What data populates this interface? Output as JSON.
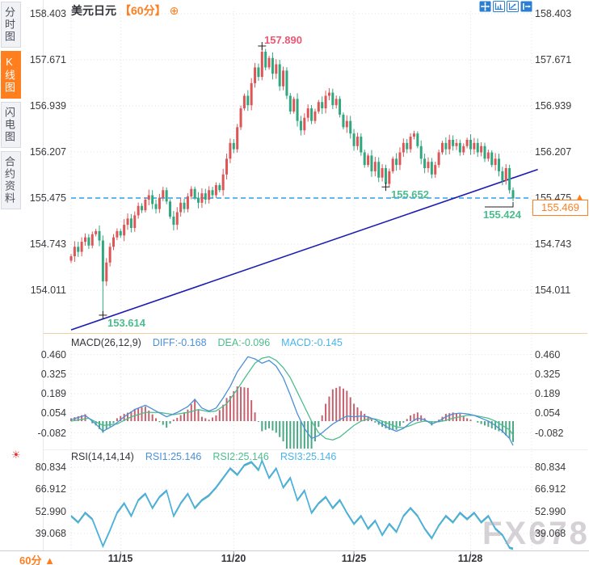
{
  "sidebar": {
    "tabs": [
      {
        "label": "分时图",
        "active": false
      },
      {
        "label": "K线图",
        "active": true
      },
      {
        "label": "闪电图",
        "active": false
      },
      {
        "label": "合约资料",
        "active": false
      }
    ]
  },
  "header": {
    "symbol": "美元日元",
    "period": "【60分】",
    "icons": [
      "circle-plus-icon",
      "pan-icon",
      "axis-scale-icon",
      "chart-pointer-icon",
      "exit-icon"
    ]
  },
  "icons": {
    "circle_plus": "⊕",
    "up_arrow": "▲",
    "sun": "☀"
  },
  "axes": {
    "price": [
      "158.403",
      "157.671",
      "156.939",
      "156.207",
      "155.475",
      "154.743",
      "154.011"
    ],
    "macd": [
      "0.460",
      "0.325",
      "0.189",
      "0.054",
      "-0.082"
    ],
    "rsi": [
      "80.834",
      "66.912",
      "52.990",
      "39.068"
    ]
  },
  "annotations": {
    "high": "157.890",
    "low_main": "153.614",
    "low_mid": "155.652",
    "low_last": "155.424",
    "current": "155.469",
    "dashed_level": "155.475"
  },
  "macd": {
    "title": "MACD(26,12,9)",
    "diff": "DIFF:-0.168",
    "dea": "DEA:-0.096",
    "macd": "MACD:-0.145"
  },
  "rsi": {
    "title": "RSI(14,14,14)",
    "r1": "RSI1:25.146",
    "r2": "RSI2:25.146",
    "r3": "RSI3:25.146"
  },
  "timebar": {
    "period": "60分",
    "dates": [
      "11/15",
      "11/20",
      "11/25",
      "11/28"
    ]
  },
  "watermark": {
    "text": "FX678"
  },
  "colors": {
    "accent_orange": "#ff7e1e",
    "candle_up_red": "#dc5658",
    "candle_down_green": "#30a77e",
    "label_red": "#ed5672",
    "label_green": "#4bbd8d",
    "diff_blue": "#4a90d9",
    "dea_green": "#4dbd8e",
    "rsi3_cyan": "#49b4e8",
    "hist_red": "#c5616e",
    "hist_green": "#4aa884",
    "trend_navy": "#1c1cb4",
    "dashed_blue": "#2f9fe8",
    "grid": "#e1e1e6",
    "toolbar_blue": "#2a7fd4",
    "marker_black": "#222222"
  },
  "chart_data": {
    "type": "candlestick+macd+rsi",
    "title": "美元日元 60分 K线图",
    "price_axis_range": {
      "top": 158.403,
      "bottom": 154.011
    },
    "dashed_level": 155.475,
    "current_price": 155.469,
    "date_tick_indices": [
      14,
      46,
      80,
      113
    ],
    "date_tick_labels": [
      "11/15",
      "11/20",
      "11/25",
      "11/28"
    ],
    "trend_line": {
      "start_index": 0,
      "start_price": 153.38,
      "end_index": 132,
      "end_price": 155.93
    },
    "price": {
      "close": [
        154.55,
        154.7,
        154.62,
        154.78,
        154.85,
        154.72,
        154.9,
        154.95,
        154.8,
        154.15,
        154.45,
        154.7,
        154.85,
        154.95,
        154.88,
        155.05,
        155.15,
        155.0,
        155.2,
        155.35,
        155.28,
        155.45,
        155.52,
        155.38,
        155.3,
        155.48,
        155.6,
        155.42,
        155.18,
        155.05,
        155.25,
        155.4,
        155.3,
        155.5,
        155.62,
        155.48,
        155.4,
        155.55,
        155.45,
        155.6,
        155.52,
        155.68,
        155.6,
        155.85,
        156.1,
        156.35,
        156.25,
        156.6,
        156.9,
        157.1,
        156.95,
        157.3,
        157.55,
        157.4,
        157.8,
        157.55,
        157.7,
        157.45,
        157.6,
        157.25,
        157.5,
        157.1,
        156.85,
        157.05,
        156.7,
        156.55,
        156.75,
        156.9,
        156.7,
        156.85,
        157.0,
        156.9,
        157.1,
        157.15,
        156.95,
        157.05,
        156.8,
        156.6,
        156.7,
        156.5,
        156.3,
        156.45,
        156.2,
        156.0,
        156.15,
        155.9,
        156.05,
        155.8,
        155.95,
        155.7,
        155.9,
        156.1,
        156.0,
        156.2,
        156.35,
        156.25,
        156.45,
        156.5,
        156.3,
        156.1,
        155.95,
        156.05,
        155.85,
        156.0,
        156.2,
        156.35,
        156.25,
        156.4,
        156.3,
        156.35,
        156.2,
        156.3,
        156.4,
        156.25,
        156.35,
        156.2,
        156.3,
        156.1,
        156.2,
        156.0,
        156.1,
        155.9,
        155.75,
        155.95,
        155.6,
        155.47
      ],
      "first_open": 154.48,
      "extremes": {
        "9": {
          "low": 153.614,
          "marker": "cross"
        },
        "54": {
          "high": 157.89,
          "marker": "cross"
        },
        "89": {
          "low": 155.652,
          "marker": "cross"
        },
        "125": {
          "low": 155.424,
          "marker": "leader"
        }
      }
    },
    "macd": {
      "axis_values": [
        0.46,
        0.325,
        0.189,
        0.054,
        -0.082
      ],
      "hist_rule": "hist = 2*(diff-dea)",
      "diff_anchors": [
        [
          0,
          0.01
        ],
        [
          4,
          0.04
        ],
        [
          7,
          -0.02
        ],
        [
          9,
          -0.07
        ],
        [
          12,
          -0.03
        ],
        [
          15,
          0.03
        ],
        [
          18,
          0.08
        ],
        [
          21,
          0.11
        ],
        [
          24,
          0.07
        ],
        [
          27,
          0.03
        ],
        [
          30,
          0.06
        ],
        [
          33,
          0.1
        ],
        [
          35,
          0.15
        ],
        [
          37,
          0.09
        ],
        [
          39,
          0.07
        ],
        [
          41,
          0.09
        ],
        [
          43,
          0.16
        ],
        [
          45,
          0.24
        ],
        [
          47,
          0.34
        ],
        [
          50,
          0.445
        ],
        [
          52,
          0.43
        ],
        [
          54,
          0.4
        ],
        [
          56,
          0.42
        ],
        [
          58,
          0.38
        ],
        [
          60,
          0.3
        ],
        [
          62,
          0.18
        ],
        [
          64,
          0.05
        ],
        [
          66,
          -0.05
        ],
        [
          68,
          -0.12
        ],
        [
          70,
          -0.1
        ],
        [
          72,
          -0.06
        ],
        [
          74,
          -0.02
        ],
        [
          76,
          0.01
        ],
        [
          78,
          0.035
        ],
        [
          80,
          0.03
        ],
        [
          82,
          0.035
        ],
        [
          84,
          0.03
        ],
        [
          86,
          0.01
        ],
        [
          88,
          -0.02
        ],
        [
          90,
          -0.05
        ],
        [
          92,
          -0.07
        ],
        [
          94,
          -0.05
        ],
        [
          96,
          -0.01
        ],
        [
          98,
          0.02
        ],
        [
          100,
          0.01
        ],
        [
          102,
          -0.02
        ],
        [
          104,
          0.0
        ],
        [
          106,
          0.03
        ],
        [
          108,
          0.05
        ],
        [
          110,
          0.055
        ],
        [
          112,
          0.05
        ],
        [
          114,
          0.04
        ],
        [
          116,
          0.02
        ],
        [
          118,
          0.0
        ],
        [
          120,
          -0.03
        ],
        [
          122,
          -0.07
        ],
        [
          124,
          -0.12
        ],
        [
          125,
          -0.168
        ]
      ],
      "dea_anchors": [
        [
          0,
          0.0
        ],
        [
          5,
          0.02
        ],
        [
          9,
          -0.03
        ],
        [
          13,
          -0.02
        ],
        [
          17,
          0.03
        ],
        [
          21,
          0.06
        ],
        [
          25,
          0.06
        ],
        [
          29,
          0.045
        ],
        [
          33,
          0.06
        ],
        [
          36,
          0.08
        ],
        [
          39,
          0.065
        ],
        [
          41,
          0.07
        ],
        [
          44,
          0.12
        ],
        [
          47,
          0.22
        ],
        [
          50,
          0.33
        ],
        [
          52,
          0.4
        ],
        [
          54,
          0.435
        ],
        [
          56,
          0.445
        ],
        [
          58,
          0.42
        ],
        [
          60,
          0.37
        ],
        [
          62,
          0.3
        ],
        [
          64,
          0.2
        ],
        [
          66,
          0.1
        ],
        [
          68,
          0.0
        ],
        [
          70,
          -0.08
        ],
        [
          72,
          -0.12
        ],
        [
          74,
          -0.13
        ],
        [
          76,
          -0.11
        ],
        [
          78,
          -0.07
        ],
        [
          80,
          -0.03
        ],
        [
          82,
          0.0
        ],
        [
          84,
          0.015
        ],
        [
          86,
          0.015
        ],
        [
          88,
          0.0
        ],
        [
          90,
          -0.02
        ],
        [
          92,
          -0.04
        ],
        [
          94,
          -0.045
        ],
        [
          96,
          -0.03
        ],
        [
          98,
          -0.01
        ],
        [
          100,
          0.0
        ],
        [
          102,
          -0.005
        ],
        [
          104,
          -0.005
        ],
        [
          106,
          0.005
        ],
        [
          108,
          0.02
        ],
        [
          110,
          0.03
        ],
        [
          112,
          0.04
        ],
        [
          114,
          0.04
        ],
        [
          116,
          0.03
        ],
        [
          118,
          0.02
        ],
        [
          120,
          0.0
        ],
        [
          122,
          -0.03
        ],
        [
          124,
          -0.06
        ],
        [
          125,
          -0.096
        ]
      ],
      "last_values": {
        "diff": -0.168,
        "dea": -0.096,
        "macd": -0.145
      }
    },
    "rsi": {
      "axis_values": [
        80.834,
        66.912,
        52.99,
        39.068
      ],
      "anchors": [
        [
          0,
          50
        ],
        [
          2,
          46
        ],
        [
          4,
          52
        ],
        [
          6,
          48
        ],
        [
          9,
          31
        ],
        [
          11,
          41
        ],
        [
          13,
          52
        ],
        [
          15,
          58
        ],
        [
          17,
          50
        ],
        [
          19,
          60
        ],
        [
          21,
          64
        ],
        [
          23,
          55
        ],
        [
          25,
          62
        ],
        [
          27,
          66
        ],
        [
          29,
          50
        ],
        [
          31,
          58
        ],
        [
          33,
          64
        ],
        [
          35,
          55
        ],
        [
          37,
          60
        ],
        [
          39,
          63
        ],
        [
          41,
          68
        ],
        [
          43,
          74
        ],
        [
          45,
          80
        ],
        [
          47,
          76
        ],
        [
          49,
          82
        ],
        [
          51,
          84
        ],
        [
          53,
          79
        ],
        [
          54,
          85
        ],
        [
          56,
          74
        ],
        [
          58,
          80
        ],
        [
          60,
          68
        ],
        [
          62,
          74
        ],
        [
          64,
          60
        ],
        [
          66,
          66
        ],
        [
          68,
          52
        ],
        [
          70,
          58
        ],
        [
          72,
          62
        ],
        [
          74,
          55
        ],
        [
          76,
          60
        ],
        [
          78,
          52
        ],
        [
          80,
          45
        ],
        [
          82,
          50
        ],
        [
          84,
          42
        ],
        [
          86,
          47
        ],
        [
          88,
          38
        ],
        [
          90,
          45
        ],
        [
          92,
          40
        ],
        [
          94,
          50
        ],
        [
          96,
          55
        ],
        [
          98,
          50
        ],
        [
          100,
          42
        ],
        [
          102,
          36
        ],
        [
          104,
          44
        ],
        [
          106,
          50
        ],
        [
          108,
          46
        ],
        [
          110,
          52
        ],
        [
          112,
          48
        ],
        [
          114,
          52
        ],
        [
          116,
          46
        ],
        [
          118,
          50
        ],
        [
          120,
          42
        ],
        [
          122,
          38
        ],
        [
          124,
          30
        ],
        [
          125,
          25.1
        ]
      ],
      "last_values": {
        "rsi1": 25.146,
        "rsi2": 25.146,
        "rsi3": 25.146
      }
    }
  }
}
